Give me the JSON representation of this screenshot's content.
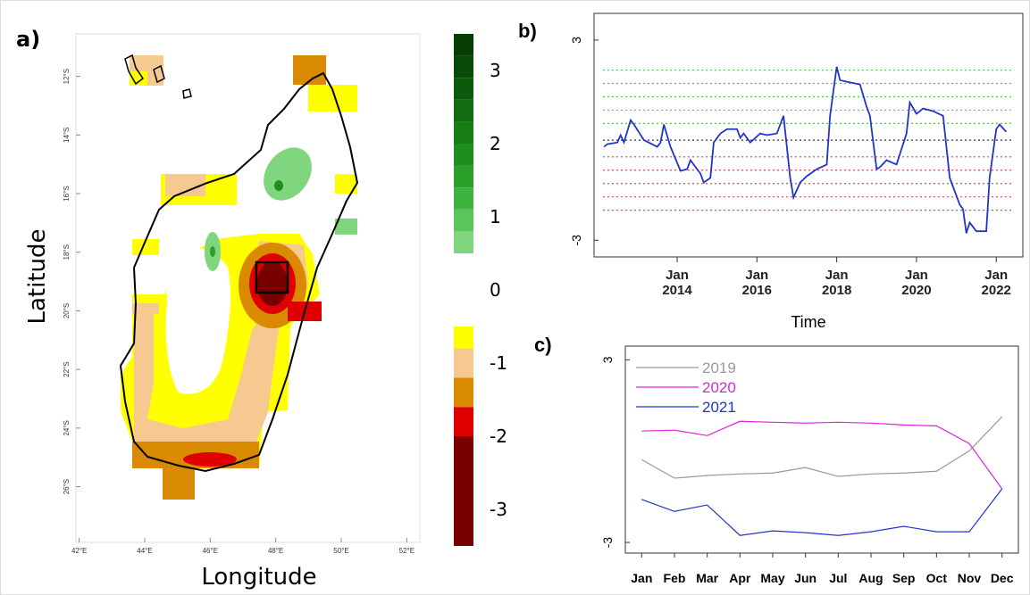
{
  "chart_data": [
    {
      "type": "map",
      "panel": "a)",
      "xlabel": "Longitude",
      "ylabel": "Latitude",
      "xlim": [
        41.9,
        52.4
      ],
      "ylim": [
        -27.9,
        -10.55
      ],
      "xticks": [
        {
          "value": 42,
          "label": "42°E"
        },
        {
          "value": 44,
          "label": "44°E"
        },
        {
          "value": 46,
          "label": "46°E"
        },
        {
          "value": 48,
          "label": "48°E"
        },
        {
          "value": 50,
          "label": "50°E"
        },
        {
          "value": 52,
          "label": "52°E"
        }
      ],
      "yticks": [
        {
          "value": -12,
          "label": "12°S"
        },
        {
          "value": -14,
          "label": "14°S"
        },
        {
          "value": -16,
          "label": "16°S"
        },
        {
          "value": -18,
          "label": "18°S"
        },
        {
          "value": -20,
          "label": "20°S"
        },
        {
          "value": -22,
          "label": "22°S"
        },
        {
          "value": -24,
          "label": "24°S"
        },
        {
          "value": -26,
          "label": "26°S"
        }
      ],
      "colorbar": {
        "lim": [
          -3.5,
          3.5
        ],
        "ticks": [
          3,
          2,
          1,
          0,
          -1,
          -2,
          -3
        ],
        "levels": [
          -3.5,
          -2,
          -1.6,
          -1.2,
          -0.8,
          -0.5,
          0.5,
          0.8,
          1.1,
          1.4,
          1.7,
          2,
          2.3,
          2.6,
          2.9,
          3.2,
          3.5
        ],
        "colors": [
          "#7a0000",
          "#e00000",
          "#d98a00",
          "#f5c990",
          "#ffff00",
          "#ffffff",
          "#7fd67f",
          "#5cc45c",
          "#3fb33f",
          "#2aa02a",
          "#1e8e1e",
          "#177d17",
          "#116b11",
          "#0c5a0c",
          "#084a08",
          "#053d05"
        ]
      }
    },
    {
      "type": "line",
      "panel": "b)",
      "xlabel": "Time",
      "color": "#2233cc",
      "xlim": [
        "2011-12",
        "2022-09"
      ],
      "ylim": [
        -3.5,
        3.8
      ],
      "xticks": [
        {
          "value": "2014-01",
          "label": "Jan 2014"
        },
        {
          "value": "2016-01",
          "label": "Jan 2016"
        },
        {
          "value": "2018-01",
          "label": "Jan 2018"
        },
        {
          "value": "2020-01",
          "label": "Jan 2020"
        },
        {
          "value": "2022-01",
          "label": "Jan 2022"
        }
      ],
      "yticks": [
        3,
        -3
      ],
      "hlines": [
        2.1,
        1.7,
        1.3,
        0.9,
        0.5,
        0,
        -0.5,
        -0.9,
        -1.3,
        -1.7,
        -2.1
      ],
      "hline_colors": [
        "#5cbf5c",
        "#5cbf5c",
        "#5cbf5c",
        "#5cbf5c",
        "#5cbf5c",
        "#333333",
        "#e04a4a",
        "#e04a4a",
        "#e04a4a",
        "#e04a4a",
        "#e04a4a"
      ],
      "x": [
        "2012-03",
        "2012-04",
        "2012-07",
        "2012-08",
        "2012-09",
        "2012-11",
        "2012-12",
        "2013-03",
        "2013-07",
        "2013-08",
        "2013-09",
        "2013-11",
        "2014-02",
        "2014-04",
        "2014-05",
        "2014-07",
        "2014-08",
        "2014-09",
        "2014-11",
        "2014-12",
        "2015-02",
        "2015-04",
        "2015-07",
        "2015-08",
        "2015-09",
        "2015-11",
        "2016-02",
        "2016-04",
        "2016-07",
        "2016-09",
        "2016-11",
        "2016-12",
        "2017-02",
        "2017-04",
        "2017-07",
        "2017-10",
        "2017-11",
        "2018-01",
        "2018-02",
        "2018-04",
        "2018-08",
        "2018-10",
        "2018-11",
        "2019-01",
        "2019-02",
        "2019-04",
        "2019-07",
        "2019-10",
        "2019-11",
        "2020-01",
        "2020-03",
        "2020-06",
        "2020-09",
        "2020-11",
        "2021-02",
        "2021-03",
        "2021-04",
        "2021-05",
        "2021-06",
        "2021-07",
        "2021-10",
        "2021-11",
        "2022-01",
        "2022-02",
        "2022-04"
      ],
      "values": [
        -0.2,
        -0.12,
        -0.07,
        0.15,
        -0.07,
        0.6,
        0.47,
        0,
        -0.2,
        -0.07,
        0.47,
        -0.2,
        -0.92,
        -0.87,
        -0.6,
        -0.87,
        -1.0,
        -1.27,
        -1.13,
        -0.07,
        0.2,
        0.33,
        0.33,
        0.07,
        0.2,
        -0.07,
        0.2,
        0.15,
        0.2,
        0.73,
        -1.13,
        -1.72,
        -1.27,
        -1.08,
        -0.87,
        -0.73,
        0.73,
        2.2,
        1.8,
        1.75,
        1.67,
        1.0,
        0.73,
        -0.87,
        -0.81,
        -0.6,
        -0.73,
        0.2,
        1.13,
        0.79,
        0.95,
        0.87,
        0.73,
        -1.13,
        -1.93,
        -2.07,
        -2.79,
        -2.47,
        -2.6,
        -2.73,
        -2.73,
        -1.13,
        0.33,
        0.47,
        0.25
      ]
    },
    {
      "type": "line",
      "panel": "c)",
      "categories": [
        "Jan",
        "Feb",
        "Mar",
        "Apr",
        "May",
        "Jun",
        "Jul",
        "Aug",
        "Sep",
        "Oct",
        "Nov",
        "Dec"
      ],
      "ylim": [
        -3.35,
        3.45
      ],
      "yticks": [
        3,
        -3
      ],
      "series": [
        {
          "name": "2019",
          "color": "#999999",
          "values": [
            -0.28,
            -0.89,
            -0.8,
            -0.75,
            -0.72,
            -0.54,
            -0.83,
            -0.75,
            -0.72,
            -0.66,
            0.01,
            1.13
          ]
        },
        {
          "name": "2020",
          "color": "#dd22dd",
          "values": [
            0.66,
            0.69,
            0.51,
            0.98,
            0.95,
            0.92,
            0.95,
            0.92,
            0.86,
            0.83,
            0.25,
            -1.24
          ]
        },
        {
          "name": "2021",
          "color": "#2233cc",
          "values": [
            -1.59,
            -1.98,
            -1.77,
            -2.77,
            -2.62,
            -2.68,
            -2.77,
            -2.65,
            -2.47,
            -2.65,
            -2.65,
            -1.24
          ]
        }
      ]
    }
  ]
}
